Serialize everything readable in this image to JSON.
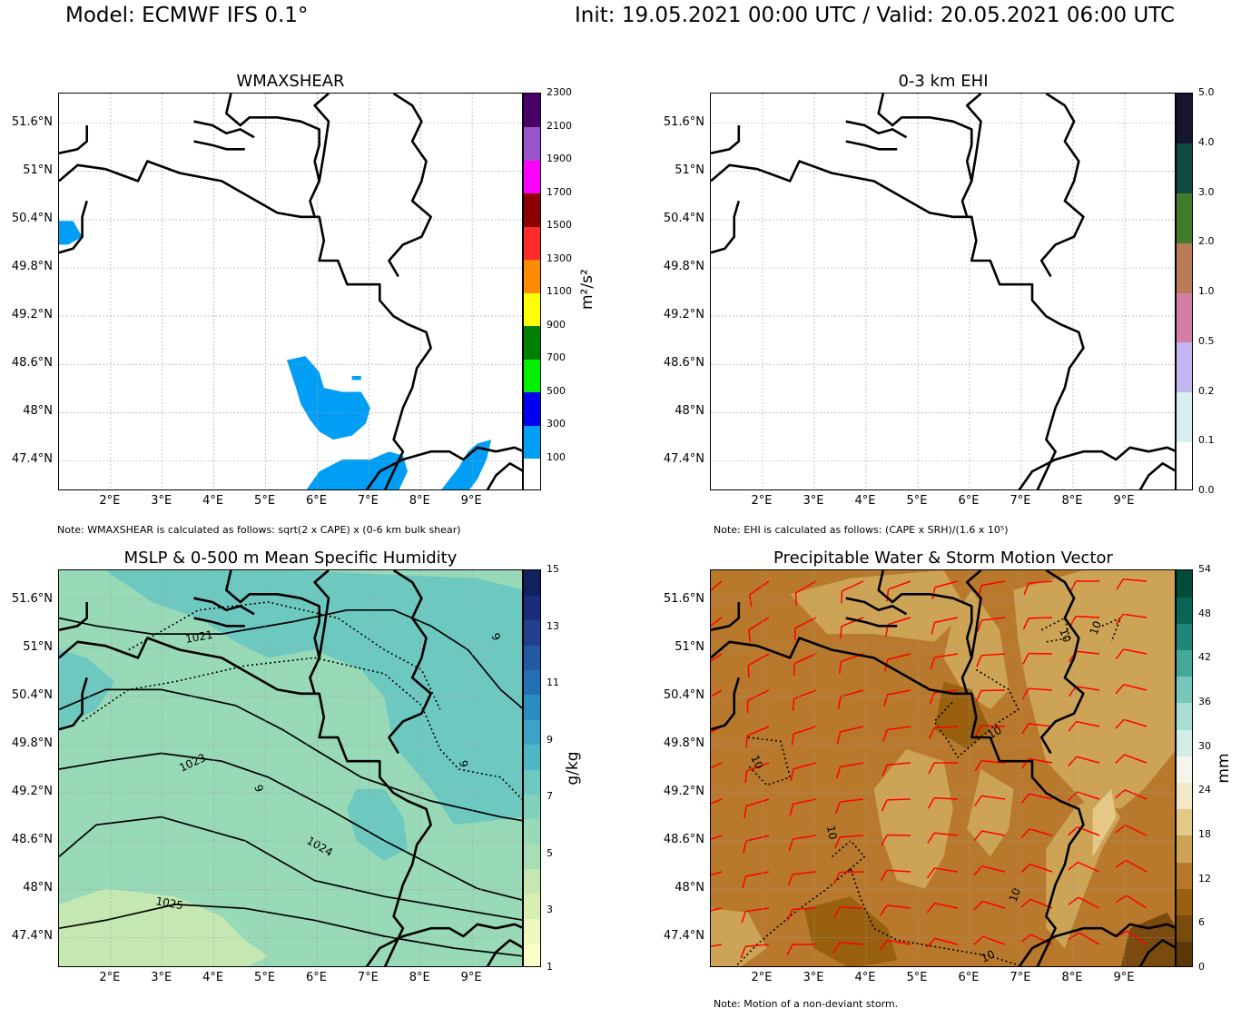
{
  "header": {
    "model": "Model: ECMWF IFS 0.1°",
    "init_valid": "Init: 19.05.2021 00:00 UTC / Valid: 20.05.2021 06:00 UTC"
  },
  "axes": {
    "lat_labels": [
      "51.6°N",
      "51°N",
      "50.4°N",
      "49.8°N",
      "49.2°N",
      "48.6°N",
      "48°N",
      "47.4°N"
    ],
    "lon_labels": [
      "2°E",
      "3°E",
      "4°E",
      "5°E",
      "6°E",
      "7°E",
      "8°E",
      "9°E"
    ]
  },
  "panels": [
    {
      "title": "WMAXSHEAR",
      "note": "Note: WMAXSHEAR is calculated as follows: sqrt(2 x CAPE) x (0-6 km bulk shear)",
      "unit": "m²/s²",
      "colorbar": {
        "ticks": [
          "100",
          "300",
          "500",
          "700",
          "900",
          "1100",
          "1300",
          "1500",
          "1700",
          "1900",
          "2100",
          "2300"
        ],
        "colors": [
          "#ffffff",
          "#009ff5",
          "#0000f0",
          "#00f000",
          "#008000",
          "#ffff00",
          "#ff8c00",
          "#ff2a2a",
          "#8b0000",
          "#ff00ff",
          "#9955cc",
          "#4b0068"
        ]
      }
    },
    {
      "title": "0-3 km EHI",
      "note": "Note: EHI is calculated as follows: (CAPE x SRH)/(1.6 x 10⁵)",
      "unit": "",
      "colorbar": {
        "ticks": [
          "0.0",
          "0.1",
          "0.2",
          "0.5",
          "1.0",
          "2.0",
          "3.0",
          "4.0",
          "5.0"
        ],
        "colors": [
          "#ffffff",
          "#d7eff1",
          "#c4b4ef",
          "#d47ea6",
          "#b97a57",
          "#437a2c",
          "#124a44",
          "#161530"
        ]
      }
    },
    {
      "title": "MSLP & 0-500 m Mean Specific Humidity",
      "note": "",
      "unit": "g/kg",
      "colorbar": {
        "ticks": [
          "1",
          "3",
          "5",
          "7",
          "9",
          "11",
          "13",
          "15"
        ],
        "colors": [
          "#fcfdc8",
          "#eef7be",
          "#d8efb4",
          "#c5e8b3",
          "#a9ddb6",
          "#98d9b8",
          "#82d2bb",
          "#6dc9c0",
          "#4fb7c3",
          "#3ba3c5",
          "#2a8cbf",
          "#2270b3",
          "#2358a3",
          "#233f90",
          "#1b2d7a",
          "#102160"
        ],
        "contour_labels": [
          "1021",
          "1023",
          "1024",
          "1025",
          "9",
          "9",
          "9"
        ]
      }
    },
    {
      "title": "Precipitable Water & Storm Motion Vector",
      "note": "Note: Motion of a non-deviant storm.",
      "unit": "mm",
      "colorbar": {
        "ticks": [
          "0",
          "6",
          "12",
          "18",
          "24",
          "30",
          "36",
          "42",
          "48",
          "54"
        ],
        "colors": [
          "#5a3708",
          "#7a4b0e",
          "#98600f",
          "#b8792c",
          "#cda455",
          "#e5c888",
          "#f1e7c9",
          "#f6f4ec",
          "#d3ece8",
          "#a9ddd4",
          "#77c7ba",
          "#47a69a",
          "#22847a",
          "#0a6454",
          "#014c38"
        ],
        "contour_labels": [
          "10",
          "10",
          "10",
          "10",
          "10",
          "10",
          "10"
        ]
      }
    }
  ]
}
